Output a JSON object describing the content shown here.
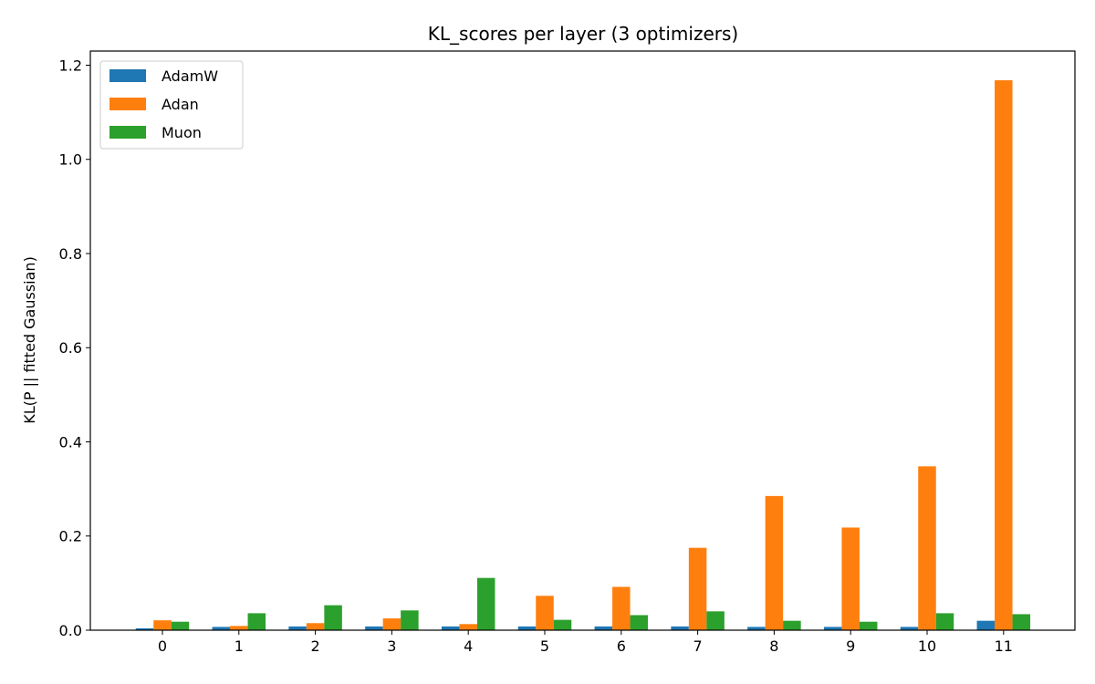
{
  "chart_data": {
    "type": "bar",
    "title": "KL_scores per layer (3 optimizers)",
    "xlabel": "",
    "ylabel": "KL(P || fitted Gaussian)",
    "categories": [
      "0",
      "1",
      "2",
      "3",
      "4",
      "5",
      "6",
      "7",
      "8",
      "9",
      "10",
      "11"
    ],
    "ylim": [
      0,
      1.23
    ],
    "yticks": [
      "0.0",
      "0.2",
      "0.4",
      "0.6",
      "0.8",
      "1.0",
      "1.2"
    ],
    "grid": false,
    "legend": "top-left",
    "series": [
      {
        "name": "AdamW",
        "color": "#1f77b4",
        "values": [
          0.004,
          0.007,
          0.008,
          0.008,
          0.008,
          0.008,
          0.008,
          0.008,
          0.007,
          0.007,
          0.007,
          0.02
        ]
      },
      {
        "name": "Adan",
        "color": "#ff7f0e",
        "values": [
          0.021,
          0.009,
          0.015,
          0.025,
          0.013,
          0.073,
          0.092,
          0.175,
          0.285,
          0.218,
          0.348,
          1.168
        ]
      },
      {
        "name": "Muon",
        "color": "#2ca02c",
        "values": [
          0.018,
          0.036,
          0.053,
          0.042,
          0.111,
          0.022,
          0.032,
          0.04,
          0.02,
          0.018,
          0.036,
          0.034
        ]
      }
    ]
  }
}
